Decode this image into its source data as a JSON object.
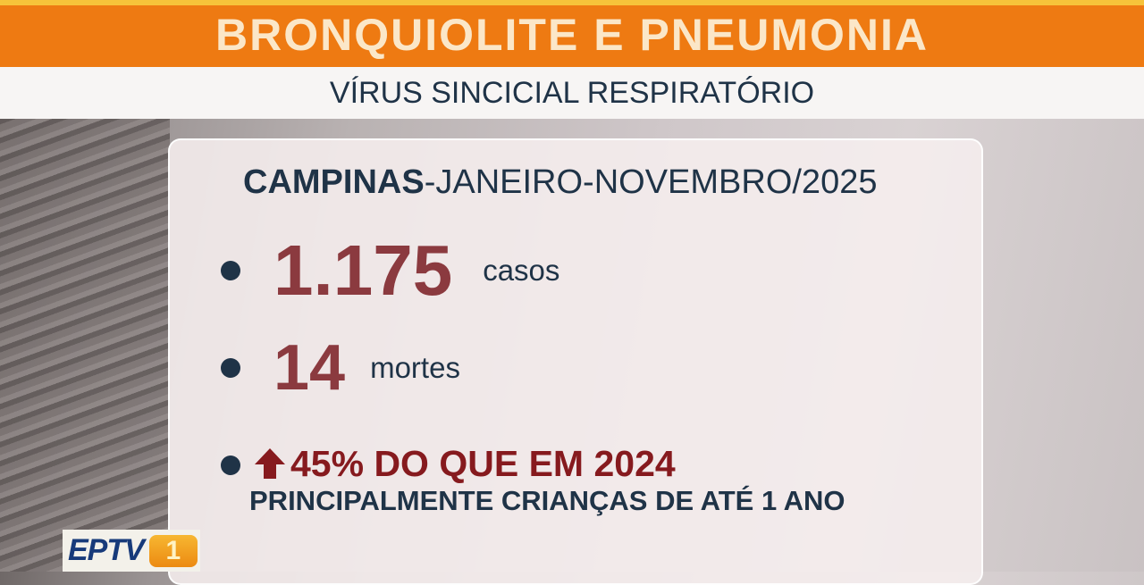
{
  "header": {
    "title": "BRONQUIOLITE E PNEUMONIA",
    "subtitle": "VÍRUS SINCICIAL RESPIRATÓRIO"
  },
  "card": {
    "heading_bold": "CAMPINAS",
    "heading_rest": "-JANEIRO-NOVEMBRO/2025",
    "stats": [
      {
        "value": "1.175",
        "unit": "casos"
      },
      {
        "value": "14",
        "unit": "mortes"
      }
    ],
    "increase": {
      "icon": "arrow-up-icon",
      "text": "45% DO QUE EM 2024"
    },
    "note": "PRINCIPALMENTE CRIANÇAS DE ATÉ 1 ANO"
  },
  "logo": {
    "text": "EPTV",
    "number": "1"
  },
  "colors": {
    "orange": "#ee7a12",
    "navy": "#1f3347",
    "red": "#8b3a3f",
    "dark_red": "#861a1e"
  }
}
